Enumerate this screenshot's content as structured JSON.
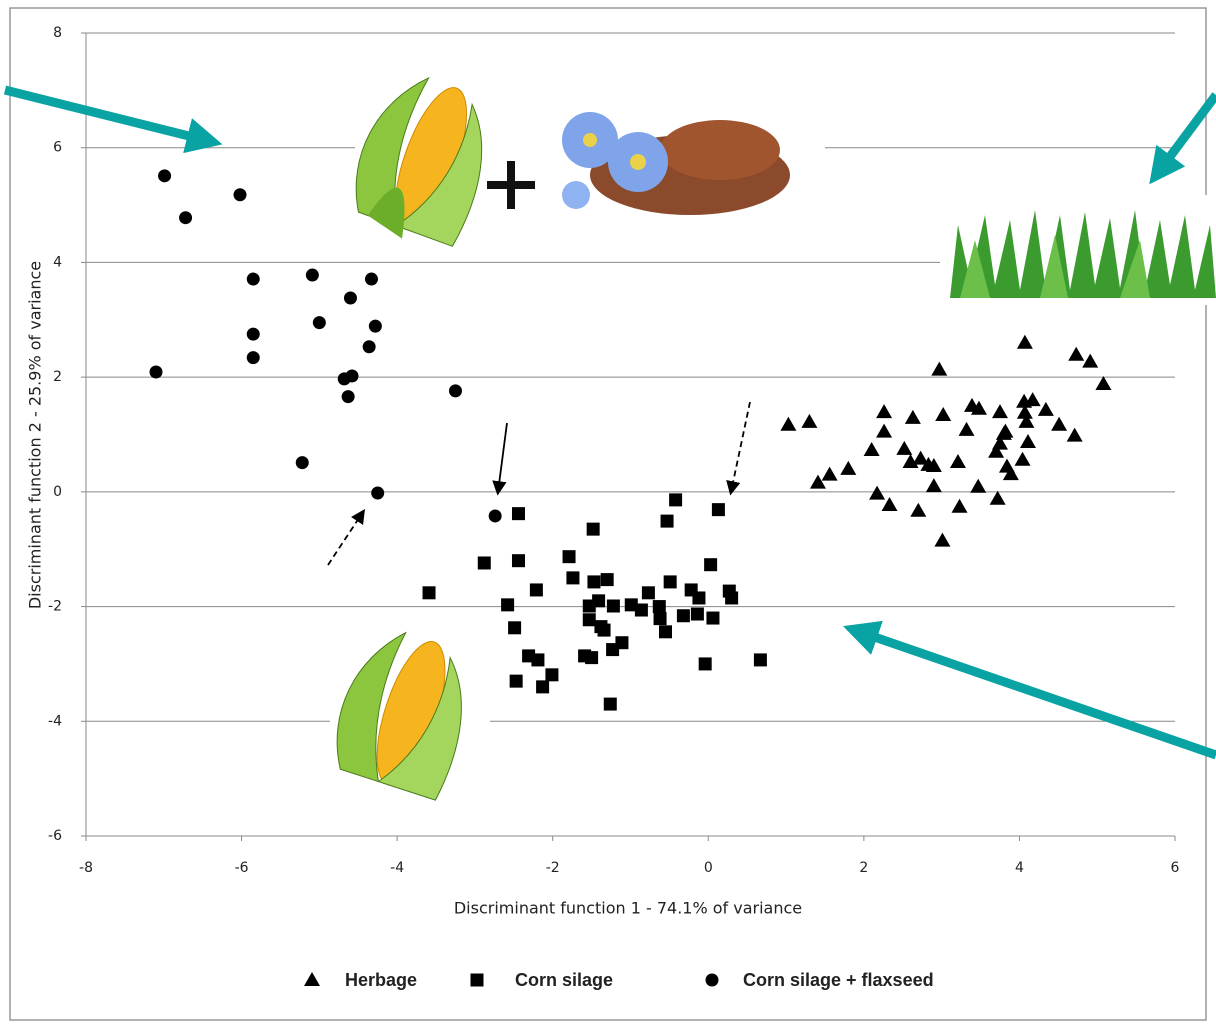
{
  "chart_data": {
    "type": "scatter",
    "xlabel": "Discriminant function  1 - 74.1% of variance",
    "ylabel": "Discriminant function  2 - 25.9% of variance",
    "xlim": [
      -8,
      6
    ],
    "ylim": [
      -6,
      8
    ],
    "xticks": [
      -8,
      -6,
      -4,
      -2,
      0,
      2,
      4,
      6
    ],
    "yticks": [
      -6,
      -4,
      -2,
      0,
      2,
      4,
      6,
      8
    ],
    "grid": true,
    "legend": "bottom",
    "series": [
      {
        "name": "Herbage",
        "color": "#000000",
        "marker": "triangle",
        "x": [
          1.03,
          1.3,
          1.41,
          1.56,
          1.8,
          2.1,
          2.26,
          2.26,
          2.17,
          2.33,
          2.52,
          2.63,
          2.6,
          2.73,
          2.83,
          2.9,
          2.7,
          2.9,
          2.97,
          3.02,
          3.01,
          3.21,
          3.23,
          3.32,
          3.39,
          3.48,
          3.47,
          3.75,
          3.7,
          3.72,
          3.8,
          3.75,
          3.84,
          3.89,
          3.82,
          4.07,
          4.06,
          4.17,
          4.09,
          4.11,
          4.04,
          4.34,
          4.51,
          4.71,
          4.73,
          4.91,
          5.08,
          4.07
        ],
        "y": [
          1.17,
          1.22,
          0.16,
          0.3,
          0.4,
          0.73,
          1.39,
          1.05,
          -0.03,
          -0.23,
          0.75,
          1.29,
          0.52,
          0.58,
          0.47,
          0.45,
          -0.33,
          0.1,
          2.13,
          1.34,
          -0.85,
          0.52,
          -0.26,
          1.08,
          1.5,
          1.45,
          0.09,
          1.39,
          0.7,
          -0.12,
          1.01,
          0.84,
          0.44,
          0.31,
          1.05,
          2.6,
          1.57,
          1.6,
          1.22,
          0.87,
          0.56,
          1.43,
          1.17,
          0.98,
          2.39,
          2.27,
          1.88,
          1.38
        ]
      },
      {
        "name": "Corn silage",
        "color": "#000000",
        "marker": "square",
        "x": [
          -3.59,
          -2.88,
          -2.44,
          -2.44,
          -2.58,
          -2.49,
          -2.21,
          -2.31,
          -2.19,
          -2.47,
          -2.13,
          -2.01,
          -1.79,
          -1.74,
          -1.48,
          -1.47,
          -1.3,
          -1.53,
          -1.41,
          -1.53,
          -1.38,
          -1.34,
          -1.22,
          -1.59,
          -1.5,
          -1.23,
          -1.11,
          -1.26,
          -0.99,
          -0.86,
          -0.77,
          -0.63,
          -0.62,
          -0.55,
          -0.49,
          -0.53,
          -0.42,
          -0.32,
          -0.22,
          -0.14,
          -0.12,
          -0.04,
          0.03,
          0.06,
          0.13,
          0.27,
          0.3,
          0.67
        ],
        "y": [
          -1.76,
          -1.24,
          -0.38,
          -1.2,
          -1.97,
          -2.37,
          -1.71,
          -2.86,
          -2.93,
          -3.3,
          -3.4,
          -3.19,
          -1.13,
          -1.5,
          -0.65,
          -1.57,
          -1.53,
          -1.99,
          -1.9,
          -2.23,
          -2.35,
          -2.41,
          -1.99,
          -2.86,
          -2.89,
          -2.75,
          -2.63,
          -3.7,
          -1.97,
          -2.06,
          -1.76,
          -2.0,
          -2.21,
          -2.44,
          -1.57,
          -0.51,
          -0.14,
          -2.16,
          -1.71,
          -2.13,
          -1.85,
          -3.0,
          -1.27,
          -2.2,
          -0.31,
          -1.73,
          -1.85,
          -2.93
        ]
      },
      {
        "name": "Corn silage + flaxseed",
        "color": "#000000",
        "marker": "circle",
        "x": [
          -6.99,
          -6.72,
          -6.02,
          -5.85,
          -5.09,
          -4.33,
          -4.6,
          -5.85,
          -5.0,
          -4.28,
          -5.85,
          -4.36,
          -7.1,
          -4.68,
          -4.58,
          -4.63,
          -3.25,
          -5.22,
          -4.25,
          -2.74
        ],
        "y": [
          5.51,
          4.78,
          5.18,
          3.71,
          3.78,
          3.71,
          3.38,
          2.75,
          2.95,
          2.89,
          2.34,
          2.53,
          2.09,
          1.97,
          2.02,
          1.66,
          1.76,
          0.51,
          -0.02,
          -0.42
        ]
      }
    ]
  }
}
